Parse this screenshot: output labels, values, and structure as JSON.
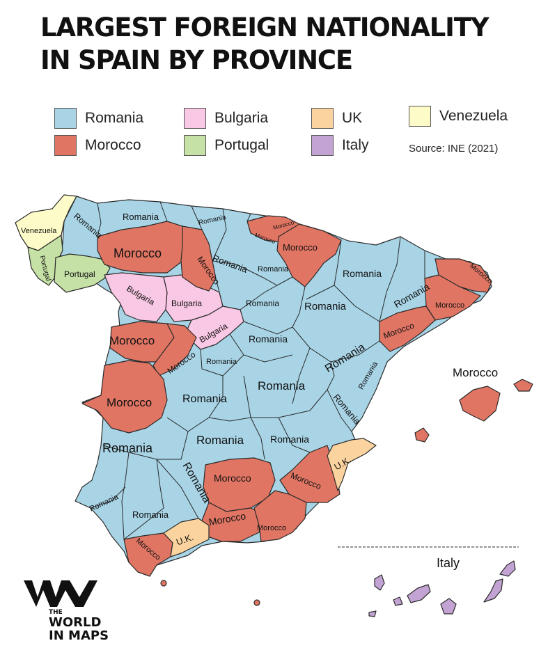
{
  "title": {
    "line1": "LARGEST FOREIGN NATIONALITY",
    "line2": "IN SPAIN BY PROVINCE"
  },
  "colors": {
    "Romania": "#a8d4e6",
    "Morocco": "#e07563",
    "Bulgaria": "#f9c8e4",
    "Portugal": "#c5e1a5",
    "UK": "#fad39f",
    "Italy": "#c3a3d3",
    "Venezuela": "#fdfbc7"
  },
  "legend": [
    {
      "key": "Romania",
      "label": "Romania"
    },
    {
      "key": "Morocco",
      "label": "Morocco"
    },
    {
      "key": "Bulgaria",
      "label": "Bulgaria"
    },
    {
      "key": "Portugal",
      "label": "Portugal"
    },
    {
      "key": "UK",
      "label": "UK"
    },
    {
      "key": "Italy",
      "label": "Italy"
    },
    {
      "key": "Venezuela",
      "label": "Venezuela"
    }
  ],
  "source": "Source: INE (2021)",
  "map_labels": {
    "venezuela": "Venezuela",
    "portugal": "Portugal",
    "bulgaria": "Bulgaria",
    "romania": "Romania",
    "morocco": "Morocco",
    "uk": "U.K.",
    "italy": "Italy"
  },
  "logo": {
    "the": "THE",
    "world": "WORLD",
    "in_maps": "IN MAPS"
  }
}
